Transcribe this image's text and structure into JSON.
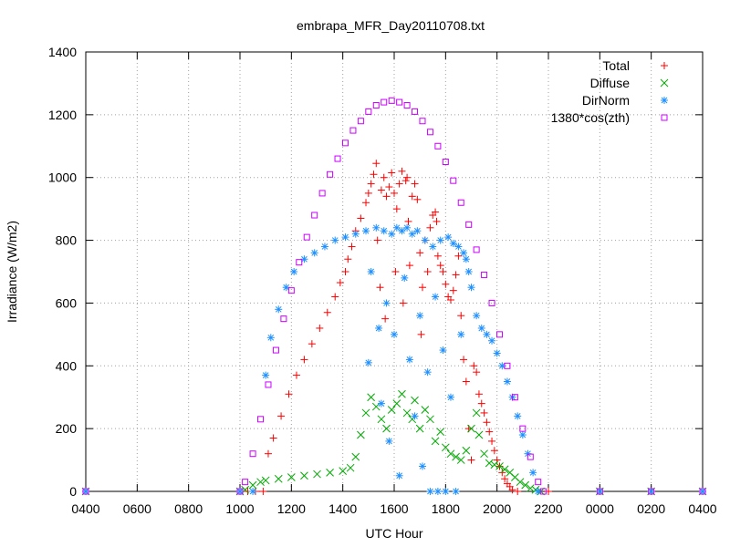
{
  "chart_data": {
    "type": "scatter",
    "title": "embrapa_MFR_Day20110708.txt",
    "xlabel": "UTC Hour",
    "ylabel": "Irradiance (W/m2)",
    "x_tick_labels": [
      "0400",
      "0600",
      "0800",
      "1000",
      "1200",
      "1400",
      "1600",
      "1800",
      "2000",
      "2200",
      "0000",
      "0200",
      "0400"
    ],
    "xlim_hours": [
      4,
      28
    ],
    "ylim": [
      0,
      1400
    ],
    "y_ticks": [
      0,
      200,
      400,
      600,
      800,
      1000,
      1200,
      1400
    ],
    "grid": true,
    "legend_position": "top-right",
    "series": [
      {
        "name": "Total",
        "marker": "plus",
        "color": "#ff0000",
        "points": [
          [
            4,
            0
          ],
          [
            10.0,
            0
          ],
          [
            10.3,
            0
          ],
          [
            10.6,
            0
          ],
          [
            10.9,
            0
          ],
          [
            11.1,
            120
          ],
          [
            11.3,
            170
          ],
          [
            11.6,
            240
          ],
          [
            11.9,
            310
          ],
          [
            12.2,
            370
          ],
          [
            12.5,
            420
          ],
          [
            12.8,
            470
          ],
          [
            13.1,
            520
          ],
          [
            13.4,
            570
          ],
          [
            13.7,
            620
          ],
          [
            13.9,
            665
          ],
          [
            14.1,
            700
          ],
          [
            14.2,
            740
          ],
          [
            14.35,
            780
          ],
          [
            14.5,
            830
          ],
          [
            14.7,
            870
          ],
          [
            14.9,
            920
          ],
          [
            15.0,
            950
          ],
          [
            15.1,
            980
          ],
          [
            15.2,
            1010
          ],
          [
            15.3,
            1045
          ],
          [
            15.35,
            800
          ],
          [
            15.45,
            650
          ],
          [
            15.5,
            960
          ],
          [
            15.6,
            1000
          ],
          [
            15.65,
            550
          ],
          [
            15.7,
            940
          ],
          [
            15.8,
            970
          ],
          [
            15.9,
            1015
          ],
          [
            16.0,
            950
          ],
          [
            16.05,
            700
          ],
          [
            16.1,
            900
          ],
          [
            16.2,
            980
          ],
          [
            16.3,
            1020
          ],
          [
            16.35,
            600
          ],
          [
            16.45,
            990
          ],
          [
            16.5,
            1000
          ],
          [
            16.55,
            860
          ],
          [
            16.6,
            720
          ],
          [
            16.7,
            940
          ],
          [
            16.8,
            980
          ],
          [
            16.9,
            930
          ],
          [
            17.0,
            760
          ],
          [
            17.05,
            500
          ],
          [
            17.1,
            650
          ],
          [
            17.2,
            800
          ],
          [
            17.3,
            700
          ],
          [
            17.4,
            840
          ],
          [
            17.5,
            880
          ],
          [
            17.6,
            890
          ],
          [
            17.65,
            860
          ],
          [
            17.7,
            750
          ],
          [
            17.8,
            720
          ],
          [
            17.9,
            700
          ],
          [
            18.0,
            660
          ],
          [
            18.1,
            620
          ],
          [
            18.2,
            610
          ],
          [
            18.3,
            640
          ],
          [
            18.4,
            690
          ],
          [
            18.5,
            750
          ],
          [
            18.6,
            560
          ],
          [
            18.7,
            420
          ],
          [
            18.8,
            350
          ],
          [
            18.9,
            200
          ],
          [
            19.0,
            100
          ],
          [
            19.1,
            400
          ],
          [
            19.2,
            380
          ],
          [
            19.3,
            310
          ],
          [
            19.4,
            280
          ],
          [
            19.5,
            250
          ],
          [
            19.6,
            220
          ],
          [
            19.7,
            190
          ],
          [
            19.8,
            160
          ],
          [
            19.9,
            130
          ],
          [
            20.0,
            100
          ],
          [
            20.1,
            80
          ],
          [
            20.2,
            60
          ],
          [
            20.3,
            40
          ],
          [
            20.4,
            25
          ],
          [
            20.5,
            15
          ],
          [
            20.6,
            5
          ],
          [
            20.8,
            0
          ],
          [
            22,
            0
          ],
          [
            24,
            0
          ],
          [
            26,
            0
          ],
          [
            28,
            0
          ]
        ]
      },
      {
        "name": "Diffuse",
        "marker": "cross",
        "color": "#00aa00",
        "points": [
          [
            4,
            0
          ],
          [
            10.0,
            0
          ],
          [
            10.2,
            5
          ],
          [
            10.5,
            20
          ],
          [
            10.8,
            30
          ],
          [
            11.0,
            35
          ],
          [
            11.5,
            40
          ],
          [
            12.0,
            45
          ],
          [
            12.5,
            50
          ],
          [
            13.0,
            55
          ],
          [
            13.5,
            60
          ],
          [
            14.0,
            65
          ],
          [
            14.3,
            75
          ],
          [
            14.5,
            110
          ],
          [
            14.7,
            180
          ],
          [
            14.9,
            250
          ],
          [
            15.1,
            300
          ],
          [
            15.3,
            270
          ],
          [
            15.5,
            230
          ],
          [
            15.7,
            200
          ],
          [
            15.9,
            260
          ],
          [
            16.1,
            280
          ],
          [
            16.3,
            310
          ],
          [
            16.5,
            250
          ],
          [
            16.7,
            230
          ],
          [
            16.8,
            290
          ],
          [
            17.0,
            200
          ],
          [
            17.2,
            260
          ],
          [
            17.4,
            230
          ],
          [
            17.6,
            160
          ],
          [
            17.8,
            190
          ],
          [
            18.0,
            140
          ],
          [
            18.2,
            120
          ],
          [
            18.4,
            110
          ],
          [
            18.6,
            100
          ],
          [
            18.8,
            130
          ],
          [
            19.0,
            200
          ],
          [
            19.2,
            250
          ],
          [
            19.3,
            180
          ],
          [
            19.5,
            120
          ],
          [
            19.7,
            90
          ],
          [
            19.9,
            85
          ],
          [
            20.1,
            80
          ],
          [
            20.3,
            70
          ],
          [
            20.5,
            60
          ],
          [
            20.7,
            45
          ],
          [
            20.9,
            30
          ],
          [
            21.1,
            20
          ],
          [
            21.3,
            10
          ],
          [
            21.5,
            5
          ],
          [
            21.7,
            0
          ],
          [
            24,
            0
          ],
          [
            26,
            0
          ],
          [
            28,
            0
          ]
        ]
      },
      {
        "name": "DirNorm",
        "marker": "star",
        "color": "#1e90ff",
        "points": [
          [
            4,
            0
          ],
          [
            10.0,
            0
          ],
          [
            10.5,
            0
          ],
          [
            11.0,
            370
          ],
          [
            11.2,
            490
          ],
          [
            11.5,
            580
          ],
          [
            11.8,
            650
          ],
          [
            12.1,
            700
          ],
          [
            12.5,
            740
          ],
          [
            12.9,
            760
          ],
          [
            13.3,
            780
          ],
          [
            13.7,
            800
          ],
          [
            14.1,
            810
          ],
          [
            14.5,
            820
          ],
          [
            14.9,
            830
          ],
          [
            15.0,
            410
          ],
          [
            15.1,
            700
          ],
          [
            15.3,
            840
          ],
          [
            15.4,
            520
          ],
          [
            15.5,
            280
          ],
          [
            15.6,
            830
          ],
          [
            15.7,
            600
          ],
          [
            15.8,
            160
          ],
          [
            15.9,
            820
          ],
          [
            16.0,
            500
          ],
          [
            16.1,
            840
          ],
          [
            16.2,
            50
          ],
          [
            16.3,
            830
          ],
          [
            16.4,
            680
          ],
          [
            16.5,
            840
          ],
          [
            16.6,
            420
          ],
          [
            16.7,
            820
          ],
          [
            16.8,
            240
          ],
          [
            16.9,
            830
          ],
          [
            17.0,
            560
          ],
          [
            17.1,
            80
          ],
          [
            17.2,
            800
          ],
          [
            17.3,
            380
          ],
          [
            17.4,
            0
          ],
          [
            17.5,
            780
          ],
          [
            17.6,
            620
          ],
          [
            17.7,
            0
          ],
          [
            17.8,
            800
          ],
          [
            17.9,
            450
          ],
          [
            18.0,
            0
          ],
          [
            18.1,
            810
          ],
          [
            18.2,
            300
          ],
          [
            18.3,
            790
          ],
          [
            18.4,
            0
          ],
          [
            18.5,
            780
          ],
          [
            18.6,
            500
          ],
          [
            18.7,
            760
          ],
          [
            18.8,
            740
          ],
          [
            18.9,
            700
          ],
          [
            19.0,
            650
          ],
          [
            19.2,
            560
          ],
          [
            19.4,
            520
          ],
          [
            19.6,
            500
          ],
          [
            19.8,
            480
          ],
          [
            20.0,
            440
          ],
          [
            20.2,
            400
          ],
          [
            20.4,
            350
          ],
          [
            20.6,
            300
          ],
          [
            20.8,
            240
          ],
          [
            21.0,
            180
          ],
          [
            21.2,
            120
          ],
          [
            21.4,
            60
          ],
          [
            21.6,
            0
          ],
          [
            24,
            0
          ],
          [
            26,
            0
          ],
          [
            28,
            0
          ]
        ]
      },
      {
        "name": "1380*cos(zth)",
        "marker": "square",
        "color": "#cc00ff",
        "points": [
          [
            4,
            0
          ],
          [
            10.0,
            0
          ],
          [
            10.2,
            30
          ],
          [
            10.5,
            120
          ],
          [
            10.8,
            230
          ],
          [
            11.1,
            340
          ],
          [
            11.4,
            450
          ],
          [
            11.7,
            550
          ],
          [
            12.0,
            640
          ],
          [
            12.3,
            730
          ],
          [
            12.6,
            810
          ],
          [
            12.9,
            880
          ],
          [
            13.2,
            950
          ],
          [
            13.5,
            1010
          ],
          [
            13.8,
            1060
          ],
          [
            14.1,
            1110
          ],
          [
            14.4,
            1150
          ],
          [
            14.7,
            1180
          ],
          [
            15.0,
            1210
          ],
          [
            15.3,
            1230
          ],
          [
            15.6,
            1240
          ],
          [
            15.9,
            1245
          ],
          [
            16.2,
            1240
          ],
          [
            16.5,
            1230
          ],
          [
            16.8,
            1210
          ],
          [
            17.1,
            1180
          ],
          [
            17.4,
            1145
          ],
          [
            17.7,
            1100
          ],
          [
            18.0,
            1050
          ],
          [
            18.3,
            990
          ],
          [
            18.6,
            920
          ],
          [
            18.9,
            850
          ],
          [
            19.2,
            770
          ],
          [
            19.5,
            690
          ],
          [
            19.8,
            600
          ],
          [
            20.1,
            500
          ],
          [
            20.4,
            400
          ],
          [
            20.7,
            300
          ],
          [
            21.0,
            200
          ],
          [
            21.3,
            110
          ],
          [
            21.6,
            30
          ],
          [
            21.8,
            0
          ],
          [
            24,
            0
          ],
          [
            26,
            0
          ],
          [
            28,
            0
          ]
        ]
      }
    ]
  }
}
